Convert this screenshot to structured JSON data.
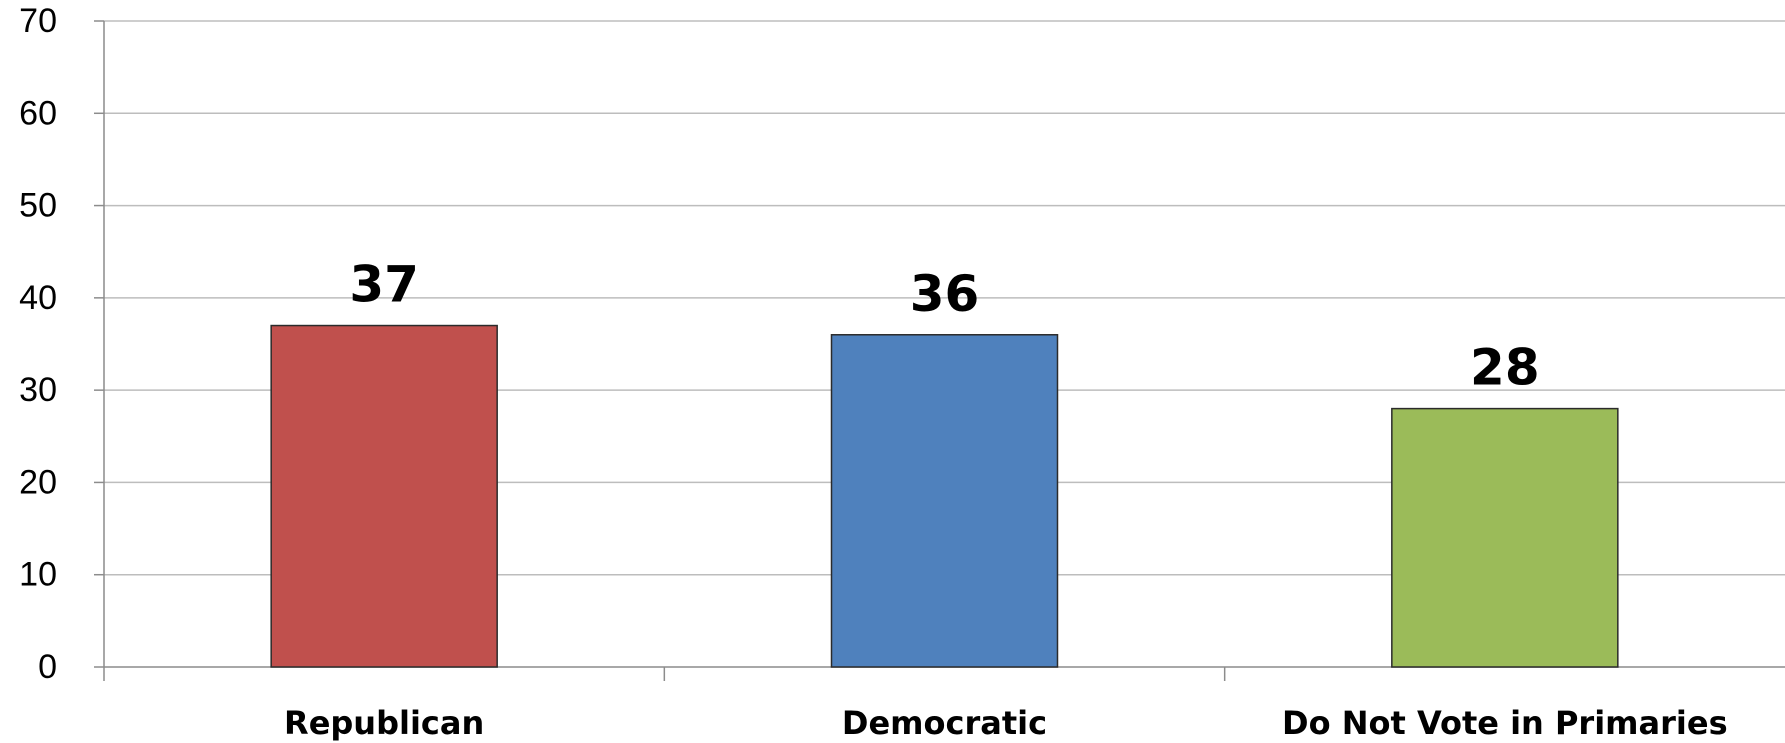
{
  "chart_data": {
    "type": "bar",
    "categories": [
      "Republican",
      "Democratic",
      "Do Not Vote in Primaries"
    ],
    "values": [
      37,
      36,
      28
    ],
    "data_labels": [
      "37",
      "36",
      "28"
    ],
    "colors": [
      "#c0504d",
      "#4f81bd",
      "#9bbb59"
    ],
    "title": "",
    "xlabel": "",
    "ylabel": "",
    "ylim": [
      0,
      70
    ],
    "yticks": [
      0,
      10,
      20,
      30,
      40,
      50,
      60,
      70
    ],
    "grid": true,
    "legend": "none"
  }
}
